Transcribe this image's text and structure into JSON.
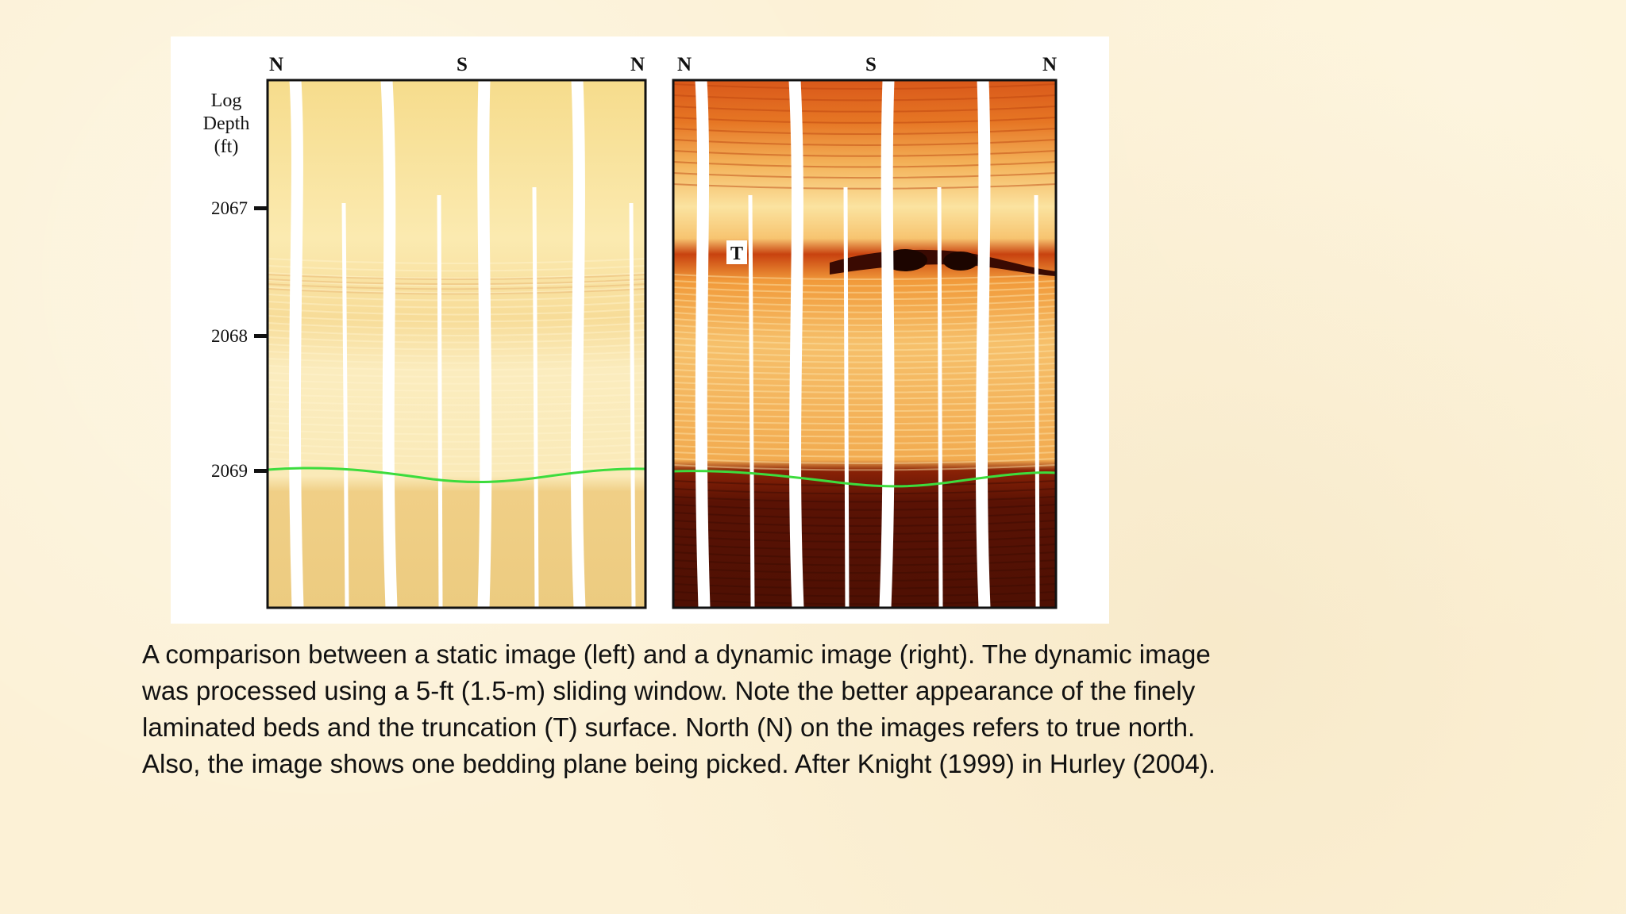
{
  "figure": {
    "axis_title": [
      "Log",
      "Depth",
      "(ft)"
    ],
    "depth_ticks": [
      "2067",
      "2068",
      "2069"
    ],
    "static_panel": {
      "orientation_labels": [
        "N",
        "S",
        "N"
      ]
    },
    "dynamic_panel": {
      "orientation_labels": [
        "N",
        "S",
        "N"
      ],
      "truncation_label": "T"
    },
    "colors": {
      "static_base": "#f3d98a",
      "dynamic_base": "#e2731a",
      "dynamic_dark": "#5a1204",
      "bedding_pick": "#3ddc3d",
      "pad_gap": "#ffffff"
    }
  },
  "caption": "A comparison between a static image (left) and a dynamic image (right). The dynamic image was processed using a 5-ft (1.5-m) sliding window. Note the better appearance of the finely laminated beds and the truncation (T) surface. North (N) on the images refers to true north. Also, the image shows one bedding plane being picked. After Knight (1999) in Hurley (2004)."
}
